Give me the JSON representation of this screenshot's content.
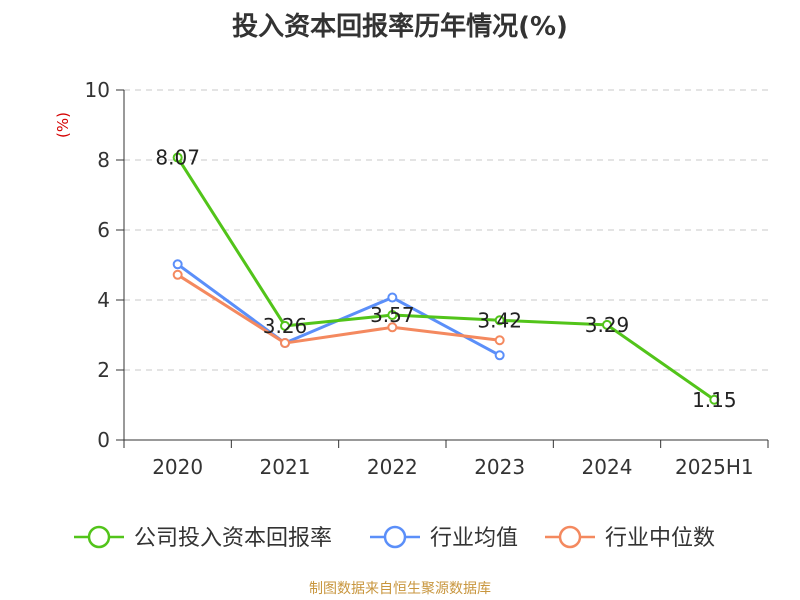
{
  "source_note": "制图数据来自恒生聚源数据库",
  "chart_data": {
    "type": "line",
    "title": "投入资本回报率历年情况(%)",
    "ylabel": "(%)",
    "xlabel": "",
    "categories": [
      "2020",
      "2021",
      "2022",
      "2023",
      "2024",
      "2025H1"
    ],
    "ylim": [
      0,
      10
    ],
    "yticks": [
      "0",
      "2",
      "4",
      "6",
      "8",
      "10"
    ],
    "grid": true,
    "legend_position": "bottom",
    "series": [
      {
        "name": "公司投入资本回报率",
        "color": "#52c41a",
        "values": [
          8.07,
          3.26,
          3.57,
          3.42,
          3.29,
          1.15
        ],
        "labels": [
          "8.07",
          "3.26",
          "3.57",
          "3.42",
          "3.29",
          "1.15"
        ]
      },
      {
        "name": "行业均值",
        "color": "#5b8ff9",
        "values": [
          5.02,
          2.77,
          4.07,
          2.42,
          null,
          null
        ]
      },
      {
        "name": "行业中位数",
        "color": "#f4895f",
        "values": [
          4.72,
          2.77,
          3.22,
          2.85,
          null,
          null
        ]
      }
    ]
  }
}
